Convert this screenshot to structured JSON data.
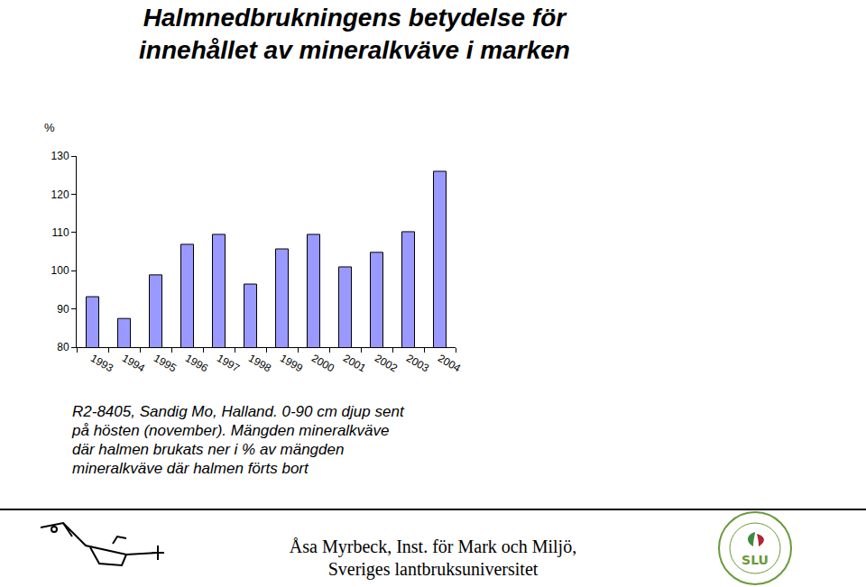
{
  "chart_data": {
    "type": "bar",
    "title": "Halmnedbrukningens betydelse för innehållet av mineralkväve i marken",
    "y_label": "%",
    "categories": [
      "1993",
      "1994",
      "1995",
      "1996",
      "1997",
      "1998",
      "1999",
      "2000",
      "2001",
      "2002",
      "2003",
      "2004"
    ],
    "values": [
      93.2,
      87.5,
      98.9,
      106.9,
      109.5,
      96.5,
      105.7,
      109.5,
      101.0,
      104.8,
      110.2,
      126.0
    ],
    "color": "#9999ff",
    "ylim": [
      80,
      130
    ],
    "yticks": [
      80,
      90,
      100,
      110,
      120,
      130
    ],
    "grid": false,
    "caption": [
      "R2-8405, Sandig Mo, Halland. 0-90 cm djup sent",
      "på hösten (november). Mängden mineralkväve",
      "där halmen brukats ner i % av mängden",
      "mineralkväve där halmen förts bort"
    ]
  },
  "footer": [
    "Åsa Myrbeck, Inst. för Mark och Miljö,",
    "Sveriges lantbruksuniversitet"
  ],
  "logo_text": "SLU"
}
